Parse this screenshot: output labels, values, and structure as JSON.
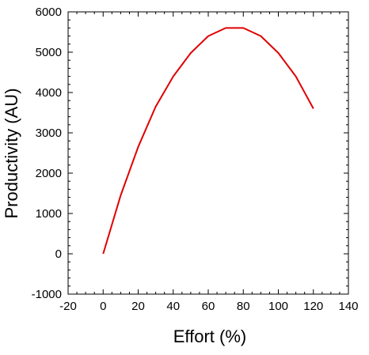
{
  "chart_data": {
    "type": "line",
    "title": "",
    "xlabel": "Effort (%)",
    "ylabel": "Productivity (AU)",
    "xlim": [
      -20,
      140
    ],
    "ylim": [
      -1000,
      6000
    ],
    "x_ticks": [
      -20,
      0,
      20,
      40,
      60,
      80,
      100,
      120,
      140
    ],
    "y_ticks": [
      -1000,
      0,
      1000,
      2000,
      3000,
      4000,
      5000,
      6000
    ],
    "x_tick_labels": [
      "-20",
      "0",
      "20",
      "40",
      "60",
      "80",
      "100",
      "120",
      "140"
    ],
    "y_tick_labels": [
      "-1000",
      "0",
      "1000",
      "2000",
      "3000",
      "4000",
      "5000",
      "6000"
    ],
    "grid": false,
    "series": [
      {
        "color": "#e00000",
        "x": [
          0,
          10,
          20,
          30,
          40,
          50,
          60,
          70,
          80,
          90,
          100,
          110,
          120
        ],
        "y": [
          0,
          1450,
          2650,
          3650,
          4400,
          4980,
          5400,
          5600,
          5600,
          5400,
          4980,
          4400,
          3600
        ]
      }
    ]
  }
}
